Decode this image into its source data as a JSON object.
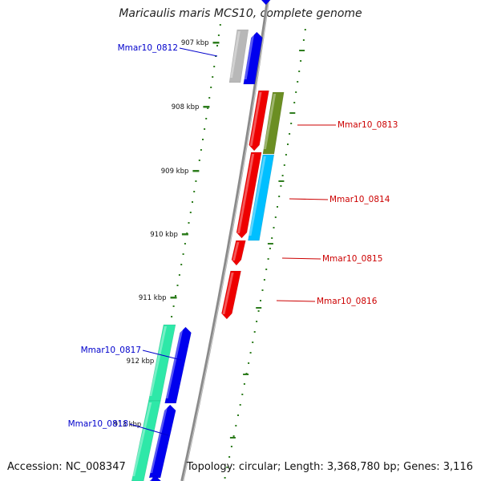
{
  "title": "Maricaulis maris MCS10, complete genome",
  "footer": {
    "accession": "Accession: NC_008347",
    "topology": "Topology: circular; Length: 3,368,780 bp; Genes: 3,116"
  },
  "colors": {
    "backbone": "#8a8a8a",
    "ticks": "#2e7d1e",
    "forward_label": "#0000cc",
    "reverse_label": "#cc0000",
    "blue_gene": "#0000ee",
    "red_gene": "#ee0000",
    "gray_gene": "#b8b8b8",
    "olive_gene": "#6b8e23",
    "cyan_gene": "#00bfff",
    "teal_gene": "#2ee8a8"
  },
  "ticks": [
    {
      "label": "907 kbp"
    },
    {
      "label": "908 kbp"
    },
    {
      "label": "909 kbp"
    },
    {
      "label": "910 kbp"
    },
    {
      "label": "911 kbp"
    },
    {
      "label": "912 kbp"
    },
    {
      "label": "913 kbp"
    }
  ],
  "gene_labels": [
    {
      "text": "Mmar10_0812",
      "strand": "forward"
    },
    {
      "text": "Mmar10_0813",
      "strand": "reverse"
    },
    {
      "text": "Mmar10_0814",
      "strand": "reverse"
    },
    {
      "text": "Mmar10_0815",
      "strand": "reverse"
    },
    {
      "text": "Mmar10_0816",
      "strand": "reverse"
    },
    {
      "text": "Mmar10_0817",
      "strand": "forward"
    },
    {
      "text": "Mmar10_0818",
      "strand": "forward"
    }
  ]
}
